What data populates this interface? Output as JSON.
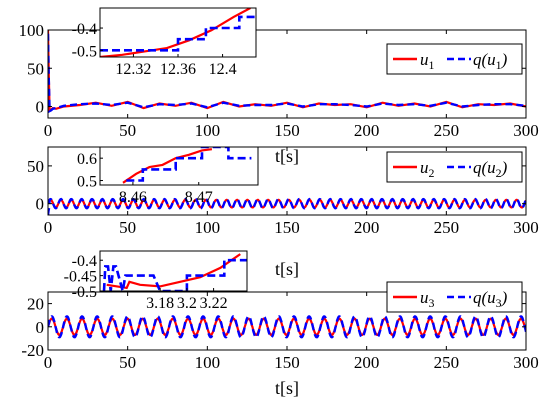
{
  "figure": {
    "colors": {
      "control": "#ff0000",
      "quantized": "#0000ff",
      "axis": "#000000",
      "background": "#ffffff"
    }
  },
  "chart_data": [
    {
      "type": "line",
      "xlabel": "t[s]",
      "ylabel": "",
      "xlim": [
        0,
        300
      ],
      "ylim": [
        -15,
        100
      ],
      "xticks": [
        "0",
        "50",
        "100",
        "150",
        "200",
        "250",
        "300"
      ],
      "yticks": [
        "0",
        "50",
        "100"
      ],
      "legend": {
        "position": "right",
        "entries": [
          "u1",
          "q(u1)"
        ]
      },
      "series": [
        {
          "name": "u1",
          "line": "solid",
          "color": "#ff0000",
          "x": [
            0,
            0.5,
            1,
            2,
            3,
            5,
            10,
            20,
            30,
            40,
            50,
            60,
            70,
            80,
            90,
            100,
            110,
            120,
            130,
            140,
            150,
            160,
            170,
            180,
            190,
            200,
            210,
            220,
            230,
            240,
            250,
            260,
            270,
            280,
            290,
            300
          ],
          "y": [
            100,
            40,
            -5,
            -4,
            -2,
            -3,
            0,
            2,
            5,
            1,
            6,
            -2,
            4,
            1,
            5,
            -2,
            6,
            0,
            3,
            1,
            5,
            -1,
            4,
            2,
            3,
            -1,
            5,
            1,
            4,
            0,
            6,
            -1,
            3,
            2,
            4,
            0
          ]
        },
        {
          "name": "q(u1)",
          "line": "dashed",
          "color": "#0000ff",
          "x": [
            0,
            0.5,
            1,
            2,
            3,
            5,
            10,
            20,
            30,
            40,
            50,
            60,
            70,
            80,
            90,
            100,
            110,
            120,
            130,
            140,
            150,
            160,
            170,
            180,
            190,
            200,
            210,
            220,
            230,
            240,
            250,
            260,
            270,
            280,
            290,
            300
          ],
          "y": [
            95,
            35,
            -6,
            -5,
            -3,
            -2,
            1,
            3,
            4,
            2,
            5,
            -1,
            3,
            2,
            4,
            -1,
            5,
            1,
            2,
            2,
            4,
            0,
            3,
            3,
            2,
            0,
            4,
            2,
            3,
            1,
            5,
            0,
            2,
            3,
            3,
            1
          ]
        }
      ],
      "inset": {
        "xlim": [
          12.29,
          12.43
        ],
        "ylim": [
          -0.53,
          -0.31
        ],
        "xticks": [
          "12.32",
          "12.36",
          "12.4"
        ],
        "yticks": [
          "-0.4",
          "-0.5"
        ],
        "series": [
          {
            "name": "u1",
            "x": [
              12.29,
              12.31,
              12.33,
              12.35,
              12.37,
              12.39,
              12.41,
              12.425
            ],
            "y": [
              -0.53,
              -0.52,
              -0.505,
              -0.49,
              -0.455,
              -0.41,
              -0.35,
              -0.31
            ]
          },
          {
            "name": "q(u1)",
            "x": [
              12.29,
              12.315,
              12.315,
              12.36,
              12.36,
              12.385,
              12.385,
              12.415,
              12.415,
              12.43
            ],
            "y": [
              -0.5,
              -0.5,
              -0.5,
              -0.5,
              -0.45,
              -0.45,
              -0.4,
              -0.4,
              -0.35,
              -0.35
            ]
          }
        ]
      }
    },
    {
      "type": "line",
      "xlabel": "t[s]",
      "ylabel": "",
      "xlim": [
        0,
        300
      ],
      "ylim": [
        -15,
        75
      ],
      "xticks": [
        "0",
        "50",
        "100",
        "150",
        "200",
        "250",
        "300"
      ],
      "yticks": [
        "0",
        "50"
      ],
      "legend": {
        "position": "right",
        "entries": [
          "u2",
          "q(u2)"
        ]
      },
      "series": [
        {
          "name": "u2",
          "line": "solid",
          "color": "#ff0000",
          "oscillation": {
            "amplitude": 5,
            "period": 6.5,
            "start": 0,
            "end": 300
          }
        },
        {
          "name": "q(u2)",
          "line": "dashed",
          "color": "#0000ff",
          "oscillation": {
            "amplitude": 6,
            "period": 6.5,
            "start": 0,
            "end": 300,
            "spike": -15
          }
        }
      ],
      "inset": {
        "xlim": [
          8.455,
          8.479
        ],
        "ylim": [
          0.48,
          0.65
        ],
        "xticks": [
          "8.46",
          "8.47"
        ],
        "yticks": [
          "0.6",
          "0.5"
        ],
        "series": [
          {
            "name": "u2",
            "x": [
              8.4585,
              8.4605,
              8.4625,
              8.4645,
              8.4665,
              8.4685,
              8.4705,
              8.472
            ],
            "y": [
              0.49,
              0.53,
              0.56,
              0.57,
              0.6,
              0.615,
              0.635,
              0.64
            ]
          },
          {
            "name": "q(u2)",
            "x": [
              8.459,
              8.4615,
              8.4615,
              8.4665,
              8.4665,
              8.4705,
              8.4705,
              8.4745,
              8.4745,
              8.478
            ],
            "y": [
              0.5,
              0.5,
              0.55,
              0.55,
              0.6,
              0.6,
              0.65,
              0.65,
              0.6,
              0.6
            ]
          }
        ]
      }
    },
    {
      "type": "line",
      "xlabel": "t[s]",
      "ylabel": "",
      "xlim": [
        0,
        300
      ],
      "ylim": [
        -20,
        30
      ],
      "xticks": [
        "0",
        "50",
        "100",
        "150",
        "200",
        "250",
        "300"
      ],
      "yticks": [
        "20",
        "0",
        "-20"
      ],
      "legend": {
        "position": "top-right",
        "entries": [
          "u3",
          "q(u3)"
        ]
      },
      "series": [
        {
          "name": "u3",
          "line": "solid",
          "color": "#ff0000",
          "oscillation": {
            "amplitude": 7,
            "period": 9.5,
            "start": 0,
            "end": 300
          }
        },
        {
          "name": "q(u3)",
          "line": "dashed",
          "color": "#0000ff",
          "oscillation": {
            "amplitude": 9,
            "period": 9.5,
            "start": 0,
            "end": 300
          }
        }
      ],
      "inset": {
        "xlim": [
          3.135,
          3.245
        ],
        "ylim": [
          -0.5,
          -0.37
        ],
        "xticks": [
          "3.18",
          "3.2",
          "3.22"
        ],
        "yticks": [
          "-0.4",
          "-0.45",
          "-0.5"
        ],
        "series": [
          {
            "name": "u3",
            "x": [
              3.14,
              3.155,
              3.157,
              3.165,
              3.18,
              3.195,
              3.21,
              3.225,
              3.24
            ],
            "y": [
              -0.48,
              -0.49,
              -0.47,
              -0.48,
              -0.485,
              -0.47,
              -0.455,
              -0.425,
              -0.38
            ]
          },
          {
            "name": "q(u3)",
            "x": [
              3.138,
              3.139,
              3.141,
              3.143,
              3.145,
              3.147,
              3.152,
              3.154,
              3.16,
              3.175,
              3.18,
              3.2,
              3.2,
              3.228,
              3.228,
              3.245
            ],
            "y": [
              -0.5,
              -0.42,
              -0.42,
              -0.5,
              -0.42,
              -0.42,
              -0.5,
              -0.45,
              -0.45,
              -0.45,
              -0.5,
              -0.5,
              -0.45,
              -0.45,
              -0.4,
              -0.4
            ]
          }
        ]
      }
    }
  ]
}
